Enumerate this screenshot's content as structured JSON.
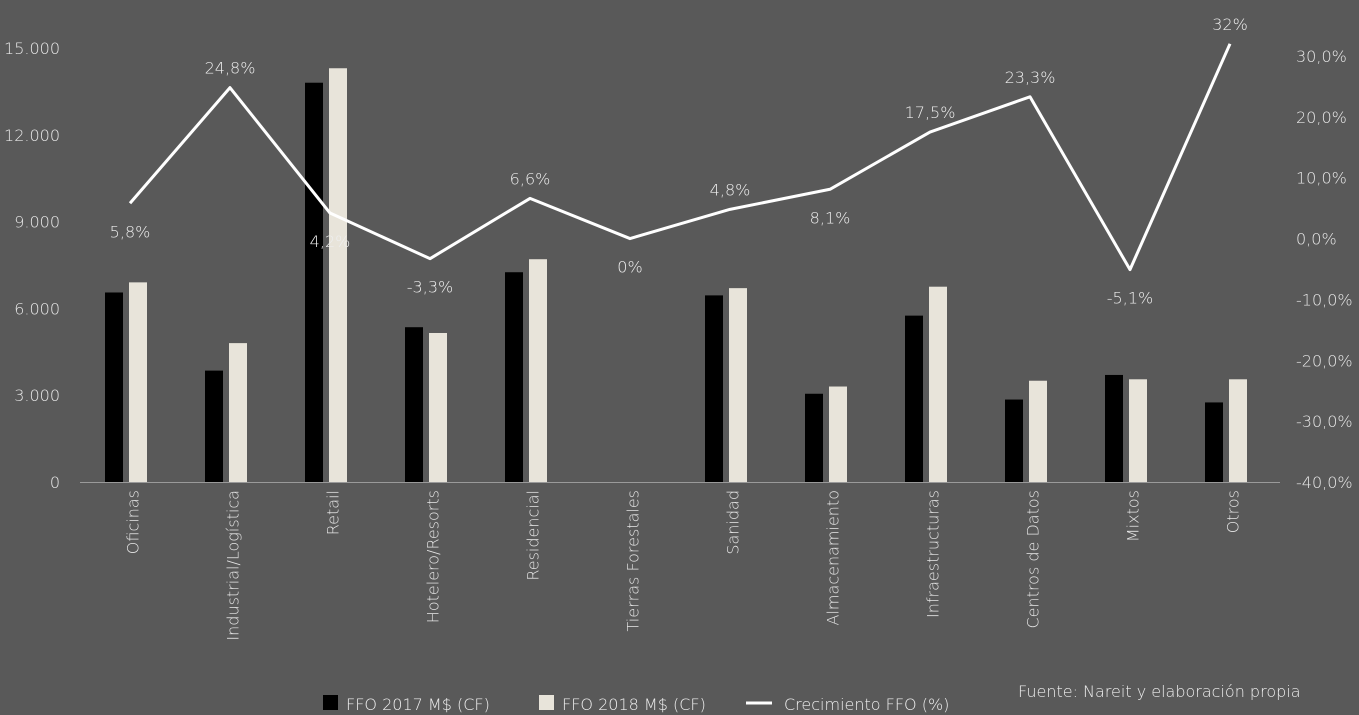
{
  "chart_data": {
    "type": "bar",
    "categories": [
      "Oficinas",
      "Industrial/Logística",
      "Retail",
      "Hotelero/Resorts",
      "Residencial",
      "Tierras Forestales",
      "Sanidad",
      "Almacenamiento",
      "Infraestructuras",
      "Centros de Datos",
      "Mixtos",
      "Otros"
    ],
    "series": [
      {
        "name": "FFO 2017 M$ (CF)",
        "type": "bar",
        "axis": "left",
        "color": "#000000",
        "values": [
          6550,
          3850,
          13800,
          5350,
          7250,
          0,
          6450,
          3050,
          5750,
          2850,
          3700,
          2750
        ]
      },
      {
        "name": "FFO 2018 M$ (CF)",
        "type": "bar",
        "axis": "left",
        "color": "#e8e4da",
        "values": [
          6900,
          4800,
          14300,
          5150,
          7700,
          0,
          6700,
          3300,
          6750,
          3500,
          3550,
          3550
        ]
      },
      {
        "name": "Crecimiento FFO (%)",
        "type": "line",
        "axis": "right",
        "color": "#ffffff",
        "values": [
          5.8,
          24.8,
          4.2,
          -3.3,
          6.6,
          0,
          4.8,
          8.1,
          17.5,
          23.3,
          -5.1,
          32
        ],
        "labels": [
          "5,8%",
          "24,8%",
          "4,2%",
          "-3,3%",
          "6,6%",
          "0%",
          "4,8%",
          "8,1%",
          "17,5%",
          "23,3%",
          "-5,1%",
          "32%"
        ]
      }
    ],
    "left_axis": {
      "min": 0,
      "max": 15000,
      "ticks": [
        "0",
        "3.000",
        "6.000",
        "9.000",
        "12.000",
        "15.000"
      ]
    },
    "right_axis": {
      "min": -40,
      "max": 30,
      "ticks": [
        "-40,0%",
        "-30,0%",
        "-20,0%",
        "-10,0%",
        "0,0%",
        "10,0%",
        "20,0%",
        "30,0%"
      ]
    },
    "legend_position": "bottom",
    "source": "Fuente: Nareit y elaboración propia"
  }
}
